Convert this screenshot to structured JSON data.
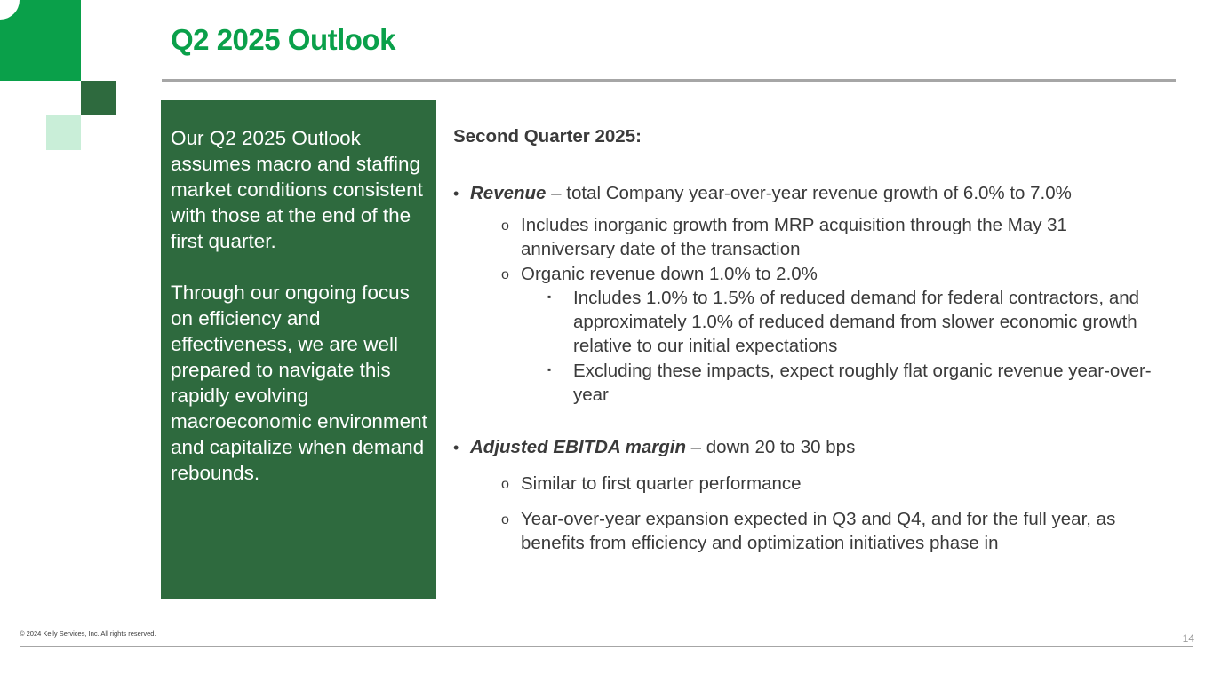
{
  "slide": {
    "title": "Q2 2025 Outlook",
    "page_number": "14",
    "footer": "© 2024 Kelly Services, Inc. All rights reserved."
  },
  "side_panel": {
    "paragraph_1": "Our Q2 2025 Outlook assumes macro and staffing market conditions consistent with those at the end of the first quarter.",
    "paragraph_2": "Through our ongoing focus on efficiency and effectiveness, we are well prepared to navigate this rapidly evolving macroeconomic environment and capitalize when demand rebounds."
  },
  "content": {
    "heading": "Second Quarter 2025:",
    "bullet_char": "•",
    "sub_bullet_char": "o",
    "subsub_bullet_char": "▪",
    "revenue": {
      "label": "Revenue",
      "text": " – total Company year-over-year revenue growth of 6.0% to 7.0%",
      "sub_1": "Includes inorganic growth from MRP acquisition through the May 31 anniversary date of the transaction",
      "sub_2": "Organic revenue down 1.0% to 2.0%",
      "sub_2_a": "Includes 1.0% to 1.5% of reduced demand for federal contractors, and approximately 1.0% of reduced demand from slower economic growth relative to our initial expectations",
      "sub_2_b": "Excluding these impacts, expect roughly flat organic revenue year-over-year"
    },
    "ebitda": {
      "label": "Adjusted EBITDA margin",
      "text": " – down 20 to 30 bps",
      "sub_1": "Similar to first quarter performance",
      "sub_2": "Year-over-year expansion expected in Q3 and Q4, and for the full year, as benefits from efficiency and optimization initiatives phase in"
    }
  },
  "colors": {
    "brand_green": "#0aa04a",
    "dark_green": "#2e6a3e",
    "light_green": "#c9eed8",
    "rule_gray": "#a6a6a6"
  }
}
